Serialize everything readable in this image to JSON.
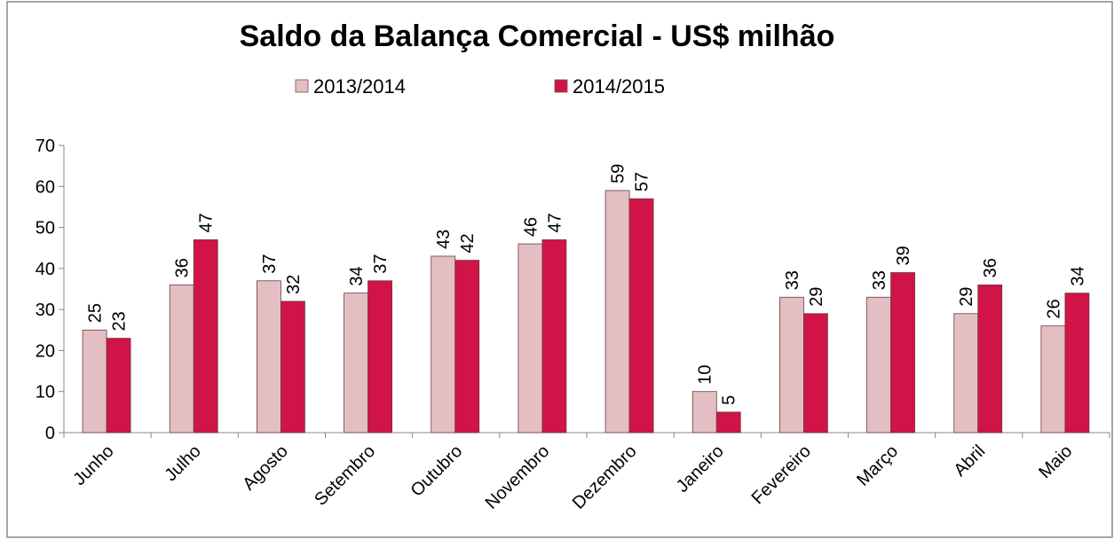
{
  "chart_data": {
    "type": "bar",
    "title": "Saldo da Balança Comercial - US$ milhão",
    "categories": [
      "Junho",
      "Julho",
      "Agosto",
      "Setembro",
      "Outubro",
      "Novembro",
      "Dezembro",
      "Janeiro",
      "Fevereiro",
      "Março",
      "Abril",
      "Maio"
    ],
    "series": [
      {
        "name": "2013/2014",
        "color": "#e3bfc3",
        "values": [
          25,
          36,
          37,
          34,
          43,
          46,
          59,
          10,
          33,
          33,
          29,
          26
        ]
      },
      {
        "name": "2014/2015",
        "color": "#d01448",
        "values": [
          23,
          47,
          32,
          37,
          42,
          47,
          57,
          5,
          29,
          39,
          36,
          34
        ]
      }
    ],
    "ylim": [
      0,
      70
    ],
    "yticks": [
      0,
      10,
      20,
      30,
      40,
      50,
      60,
      70
    ],
    "legend": "top"
  }
}
